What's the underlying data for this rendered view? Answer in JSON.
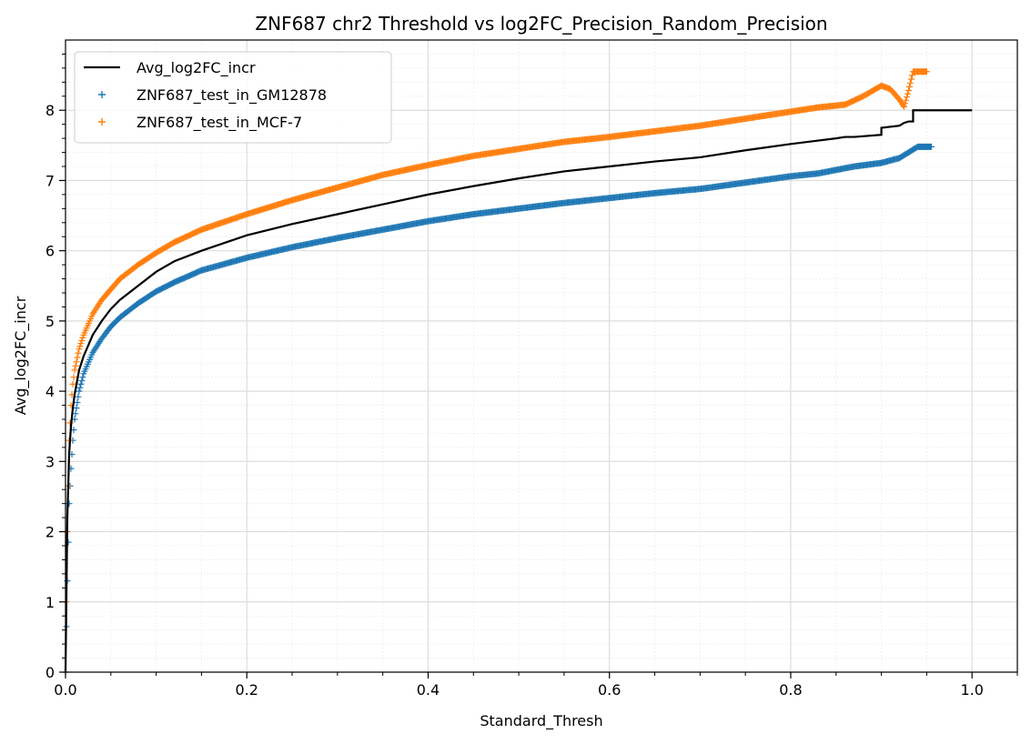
{
  "chart_data": {
    "type": "line",
    "title": "ZNF687 chr2 Threshold vs log2FC_Precision_Random_Precision",
    "xlabel": "Standard_Thresh",
    "ylabel": "Avg_log2FC_incr",
    "xlim": [
      0.0,
      1.05
    ],
    "ylim": [
      0,
      9
    ],
    "xticks": [
      0.0,
      0.2,
      0.4,
      0.6,
      0.8,
      1.0
    ],
    "xtick_labels": [
      "0.0",
      "0.2",
      "0.4",
      "0.6",
      "0.8",
      "1.0"
    ],
    "yticks": [
      0,
      1,
      2,
      3,
      4,
      5,
      6,
      7,
      8
    ],
    "ytick_labels": [
      "0",
      "1",
      "2",
      "3",
      "4",
      "5",
      "6",
      "7",
      "8"
    ],
    "grid": true,
    "minor_grid": true,
    "legend_position": "top-left",
    "series": [
      {
        "name": "Avg_log2FC_incr",
        "style": "line",
        "color": "#000000",
        "points": [
          [
            0.0,
            0.0
          ],
          [
            0.002,
            2.2
          ],
          [
            0.004,
            3.1
          ],
          [
            0.006,
            3.5
          ],
          [
            0.008,
            3.75
          ],
          [
            0.01,
            3.95
          ],
          [
            0.015,
            4.3
          ],
          [
            0.02,
            4.5
          ],
          [
            0.03,
            4.8
          ],
          [
            0.04,
            5.0
          ],
          [
            0.05,
            5.17
          ],
          [
            0.06,
            5.3
          ],
          [
            0.08,
            5.5
          ],
          [
            0.1,
            5.7
          ],
          [
            0.12,
            5.85
          ],
          [
            0.15,
            6.0
          ],
          [
            0.2,
            6.22
          ],
          [
            0.25,
            6.38
          ],
          [
            0.3,
            6.52
          ],
          [
            0.35,
            6.66
          ],
          [
            0.4,
            6.8
          ],
          [
            0.45,
            6.92
          ],
          [
            0.5,
            7.03
          ],
          [
            0.55,
            7.13
          ],
          [
            0.6,
            7.2
          ],
          [
            0.65,
            7.27
          ],
          [
            0.7,
            7.33
          ],
          [
            0.75,
            7.43
          ],
          [
            0.8,
            7.52
          ],
          [
            0.85,
            7.6
          ],
          [
            0.86,
            7.62
          ],
          [
            0.87,
            7.62
          ],
          [
            0.9,
            7.65
          ],
          [
            0.9,
            7.75
          ],
          [
            0.92,
            7.78
          ],
          [
            0.925,
            7.82
          ],
          [
            0.93,
            7.84
          ],
          [
            0.935,
            7.84
          ],
          [
            0.935,
            8.0
          ],
          [
            1.0,
            8.0
          ]
        ]
      },
      {
        "name": "ZNF687_test_in_GM12878",
        "style": "scatter",
        "marker": "+",
        "color": "#1f77b4",
        "points": [
          [
            0.0,
            0.0
          ],
          [
            0.002,
            1.3
          ],
          [
            0.004,
            2.4
          ],
          [
            0.006,
            2.9
          ],
          [
            0.008,
            3.3
          ],
          [
            0.01,
            3.6
          ],
          [
            0.015,
            4.0
          ],
          [
            0.02,
            4.25
          ],
          [
            0.03,
            4.55
          ],
          [
            0.04,
            4.75
          ],
          [
            0.05,
            4.92
          ],
          [
            0.06,
            5.05
          ],
          [
            0.08,
            5.25
          ],
          [
            0.1,
            5.42
          ],
          [
            0.12,
            5.55
          ],
          [
            0.15,
            5.72
          ],
          [
            0.2,
            5.9
          ],
          [
            0.25,
            6.05
          ],
          [
            0.3,
            6.18
          ],
          [
            0.35,
            6.3
          ],
          [
            0.4,
            6.42
          ],
          [
            0.45,
            6.52
          ],
          [
            0.5,
            6.6
          ],
          [
            0.55,
            6.68
          ],
          [
            0.6,
            6.75
          ],
          [
            0.65,
            6.82
          ],
          [
            0.7,
            6.88
          ],
          [
            0.75,
            6.97
          ],
          [
            0.8,
            7.06
          ],
          [
            0.83,
            7.1
          ],
          [
            0.85,
            7.15
          ],
          [
            0.87,
            7.2
          ],
          [
            0.9,
            7.25
          ],
          [
            0.92,
            7.32
          ],
          [
            0.93,
            7.4
          ],
          [
            0.94,
            7.48
          ],
          [
            0.945,
            7.48
          ],
          [
            0.95,
            7.48
          ],
          [
            0.955,
            7.48
          ]
        ]
      },
      {
        "name": "ZNF687_test_in_MCF-7",
        "style": "scatter",
        "marker": "+",
        "color": "#ff7f0e",
        "points": [
          [
            0.0,
            0.0
          ],
          [
            0.002,
            2.0
          ],
          [
            0.004,
            3.3
          ],
          [
            0.006,
            3.8
          ],
          [
            0.008,
            4.1
          ],
          [
            0.01,
            4.3
          ],
          [
            0.015,
            4.6
          ],
          [
            0.02,
            4.8
          ],
          [
            0.03,
            5.1
          ],
          [
            0.04,
            5.3
          ],
          [
            0.05,
            5.45
          ],
          [
            0.06,
            5.6
          ],
          [
            0.08,
            5.8
          ],
          [
            0.1,
            5.97
          ],
          [
            0.12,
            6.12
          ],
          [
            0.15,
            6.3
          ],
          [
            0.2,
            6.52
          ],
          [
            0.25,
            6.72
          ],
          [
            0.3,
            6.9
          ],
          [
            0.35,
            7.08
          ],
          [
            0.4,
            7.22
          ],
          [
            0.45,
            7.35
          ],
          [
            0.5,
            7.45
          ],
          [
            0.55,
            7.55
          ],
          [
            0.6,
            7.62
          ],
          [
            0.65,
            7.7
          ],
          [
            0.7,
            7.78
          ],
          [
            0.75,
            7.88
          ],
          [
            0.8,
            7.98
          ],
          [
            0.83,
            8.04
          ],
          [
            0.86,
            8.08
          ],
          [
            0.88,
            8.2
          ],
          [
            0.9,
            8.35
          ],
          [
            0.91,
            8.3
          ],
          [
            0.92,
            8.15
          ],
          [
            0.925,
            8.05
          ],
          [
            0.93,
            8.28
          ],
          [
            0.935,
            8.55
          ],
          [
            0.945,
            8.55
          ],
          [
            0.95,
            8.55
          ]
        ]
      }
    ]
  }
}
